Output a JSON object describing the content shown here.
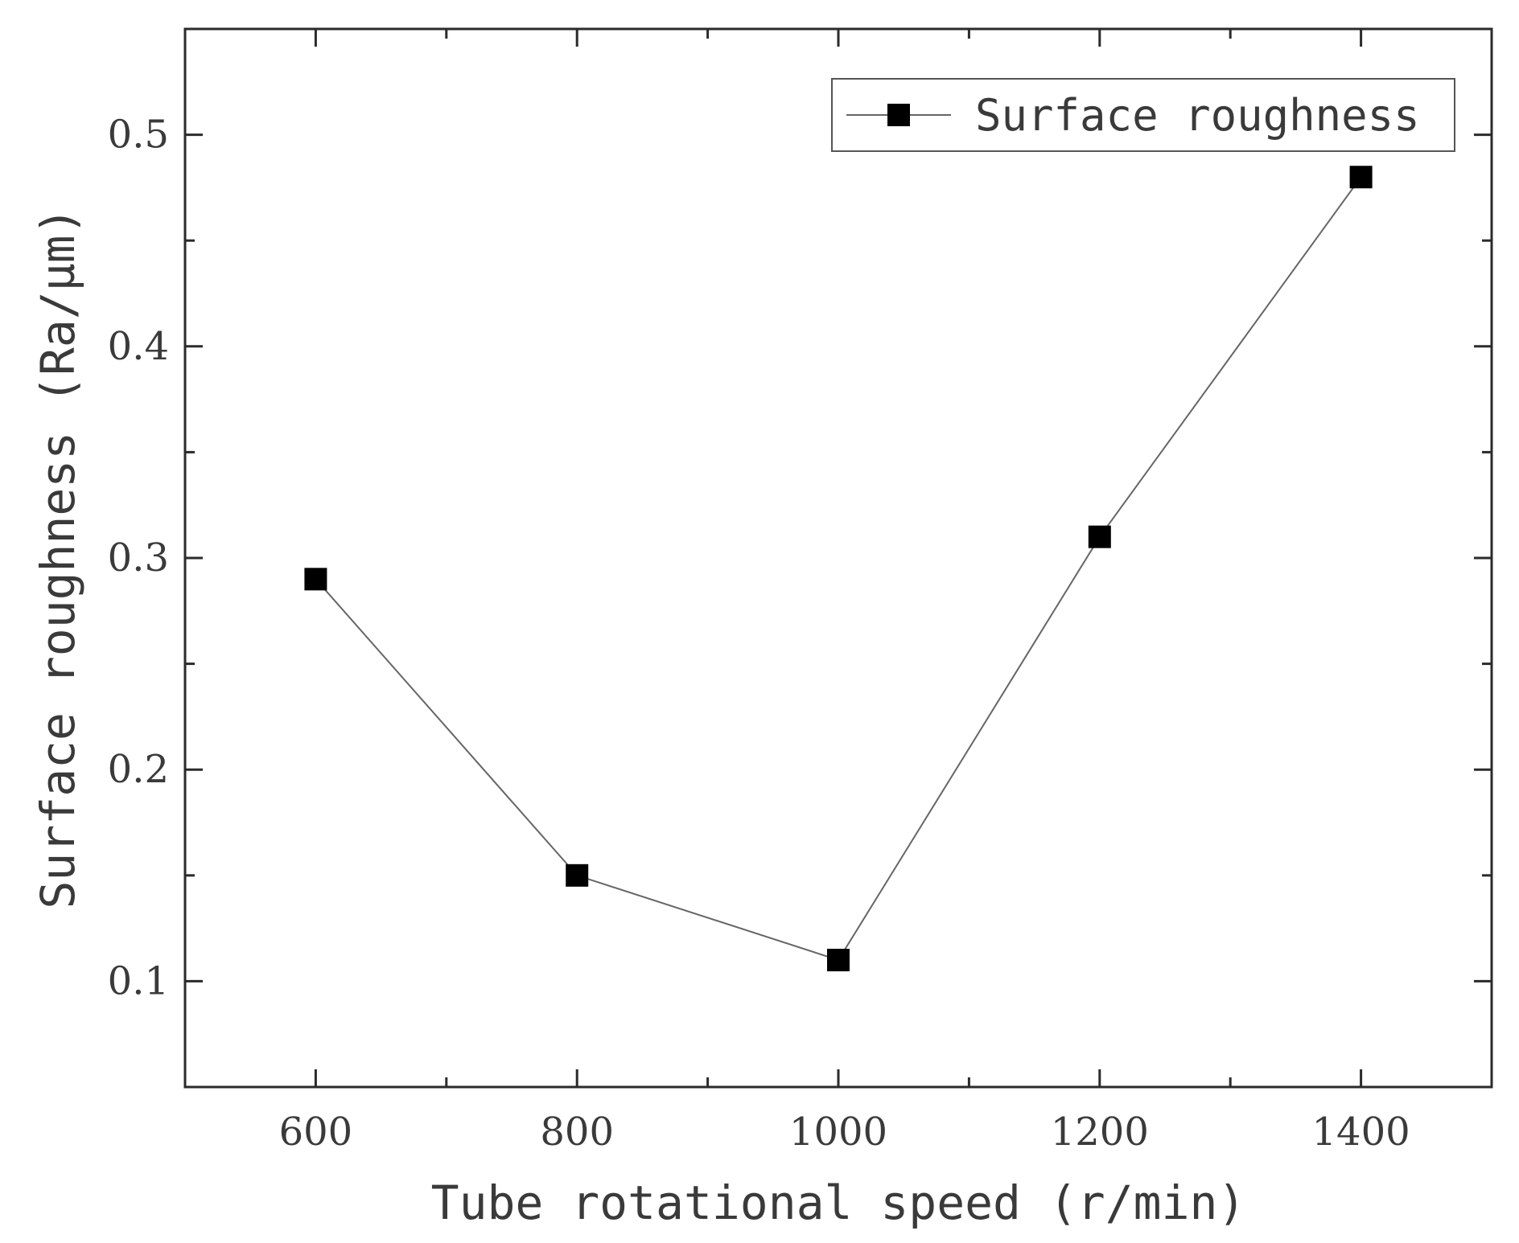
{
  "chart_data": {
    "type": "line",
    "title": "",
    "xlabel": "Tube rotational speed (r/min)",
    "ylabel": "Surface roughness (Ra/μm)",
    "xlim": [
      500,
      1500
    ],
    "ylim": [
      0.05,
      0.55
    ],
    "x_ticks": [
      600,
      800,
      1000,
      1200,
      1400
    ],
    "x_tick_labels": [
      "600",
      "800",
      "1000",
      "1200",
      "1400"
    ],
    "x_minor_ticks": [
      700,
      900,
      1100,
      1300
    ],
    "y_ticks": [
      0.1,
      0.2,
      0.3,
      0.4,
      0.5
    ],
    "y_tick_labels": [
      "0.1",
      "0.2",
      "0.3",
      "0.4",
      "0.5"
    ],
    "y_minor_ticks": [
      0.15,
      0.25,
      0.35,
      0.45
    ],
    "grid": false,
    "legend_position": "top-right",
    "series": [
      {
        "name": "Surface roughness",
        "color": "#000000",
        "line_color": "#666666",
        "marker": "square",
        "x": [
          600,
          800,
          1000,
          1200,
          1400
        ],
        "values": [
          0.29,
          0.15,
          0.11,
          0.31,
          0.48
        ]
      }
    ]
  }
}
